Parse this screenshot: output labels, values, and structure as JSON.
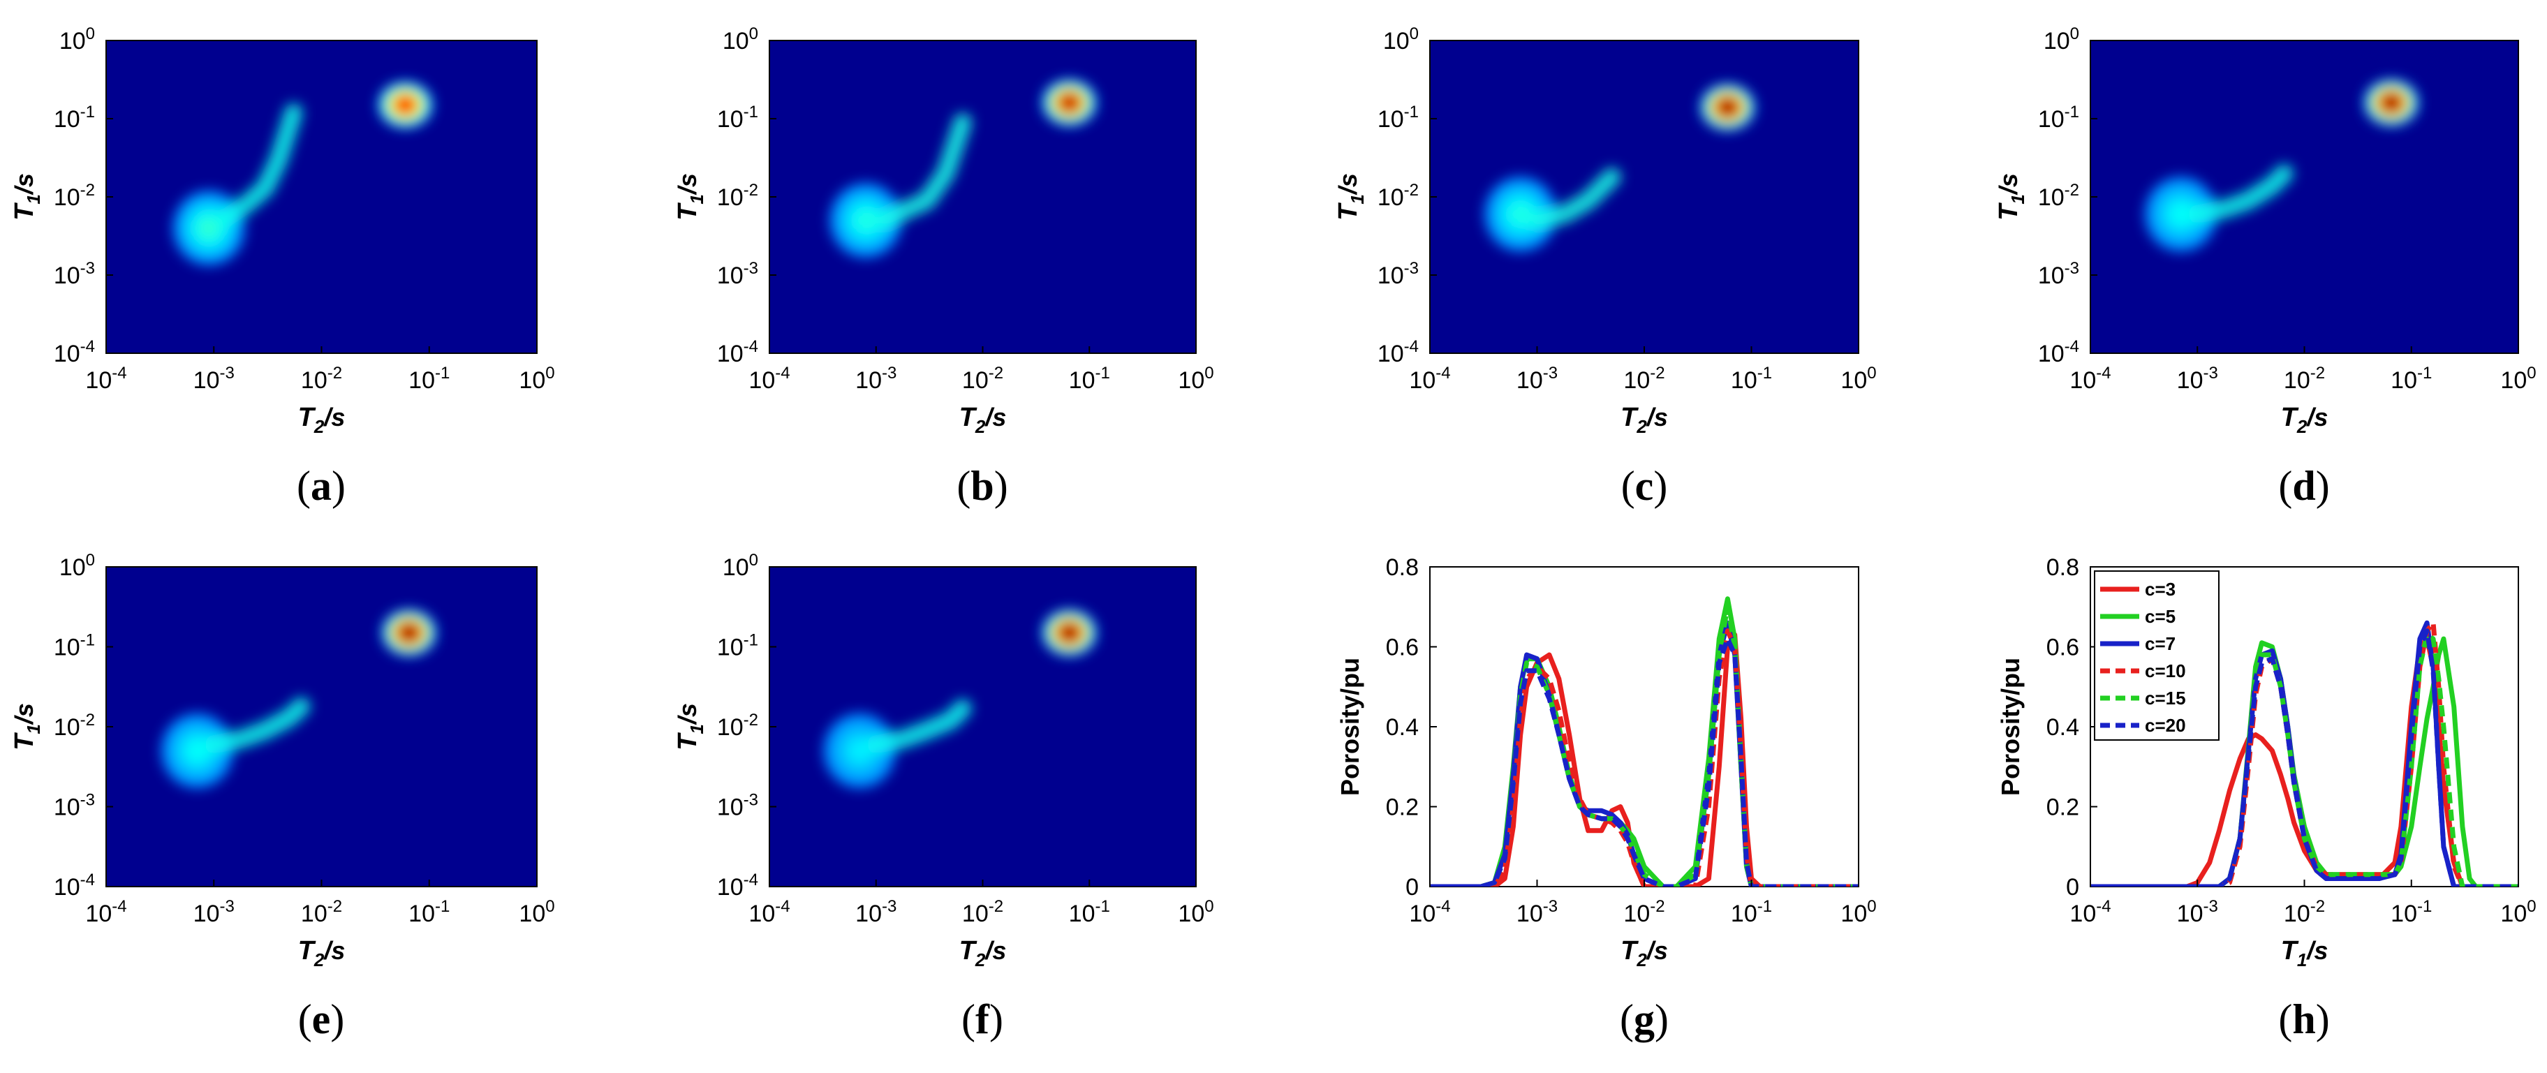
{
  "chart_data": [
    {
      "panel": "(a)",
      "type": "heatmap",
      "xlabel": "T2/s",
      "ylabel": "T1/s",
      "x_scale": "log",
      "y_scale": "log",
      "xlim": [
        0.0001,
        1
      ],
      "ylim": [
        0.0001,
        1
      ],
      "x_ticks": [
        "10-4",
        "10-3",
        "10-2",
        "10-1",
        "100"
      ],
      "y_ticks": [
        "10-4",
        "10-3",
        "10-2",
        "10-1",
        "100"
      ],
      "blobs": [
        {
          "kind": "spot",
          "t2": 0.06,
          "t1": 0.15,
          "intensity": 0.88
        },
        {
          "kind": "spot",
          "t2": 0.0009,
          "t1": 0.004,
          "intensity": 0.42
        },
        {
          "kind": "tail",
          "path_t2": [
            0.0012,
            0.002,
            0.003,
            0.004,
            0.0055
          ],
          "path_t1": [
            0.005,
            0.008,
            0.013,
            0.03,
            0.12
          ],
          "intensity": 0.22
        }
      ]
    },
    {
      "panel": "(b)",
      "type": "heatmap",
      "xlabel": "T2/s",
      "ylabel": "T1/s",
      "x_scale": "log",
      "y_scale": "log",
      "xlim": [
        0.0001,
        1
      ],
      "ylim": [
        0.0001,
        1
      ],
      "x_ticks": [
        "10-4",
        "10-3",
        "10-2",
        "10-1",
        "100"
      ],
      "y_ticks": [
        "10-4",
        "10-3",
        "10-2",
        "10-1",
        "100"
      ],
      "blobs": [
        {
          "kind": "spot",
          "t2": 0.065,
          "t1": 0.16,
          "intensity": 0.95
        },
        {
          "kind": "spot",
          "t2": 0.0008,
          "t1": 0.005,
          "intensity": 0.4
        },
        {
          "kind": "tail",
          "path_t2": [
            0.0012,
            0.002,
            0.003,
            0.0045,
            0.0065
          ],
          "path_t1": [
            0.005,
            0.007,
            0.009,
            0.02,
            0.09
          ],
          "intensity": 0.24
        }
      ]
    },
    {
      "panel": "(c)",
      "type": "heatmap",
      "xlabel": "T2/s",
      "ylabel": "T1/s",
      "x_scale": "log",
      "y_scale": "log",
      "xlim": [
        0.0001,
        1
      ],
      "ylim": [
        0.0001,
        1
      ],
      "x_ticks": [
        "10-4",
        "10-3",
        "10-2",
        "10-1",
        "100"
      ],
      "y_ticks": [
        "10-4",
        "10-3",
        "10-2",
        "10-1",
        "100"
      ],
      "blobs": [
        {
          "kind": "spot",
          "t2": 0.06,
          "t1": 0.14,
          "intensity": 1.0
        },
        {
          "kind": "spot",
          "t2": 0.0007,
          "t1": 0.006,
          "intensity": 0.4
        },
        {
          "kind": "tail",
          "path_t2": [
            0.001,
            0.0018,
            0.003,
            0.005
          ],
          "path_t1": [
            0.005,
            0.006,
            0.009,
            0.018
          ],
          "intensity": 0.25
        }
      ]
    },
    {
      "panel": "(d)",
      "type": "heatmap",
      "xlabel": "T2/s",
      "ylabel": "T1/s",
      "x_scale": "log",
      "y_scale": "log",
      "xlim": [
        0.0001,
        1
      ],
      "ylim": [
        0.0001,
        1
      ],
      "x_ticks": [
        "10-4",
        "10-3",
        "10-2",
        "10-1",
        "100"
      ],
      "y_ticks": [
        "10-4",
        "10-3",
        "10-2",
        "10-1",
        "100"
      ],
      "blobs": [
        {
          "kind": "spot",
          "t2": 0.065,
          "t1": 0.16,
          "intensity": 1.0
        },
        {
          "kind": "spot",
          "t2": 0.0007,
          "t1": 0.006,
          "intensity": 0.38
        },
        {
          "kind": "tail",
          "path_t2": [
            0.001,
            0.0018,
            0.003,
            0.005,
            0.0065
          ],
          "path_t1": [
            0.006,
            0.007,
            0.009,
            0.014,
            0.02
          ],
          "intensity": 0.22
        }
      ]
    },
    {
      "panel": "(e)",
      "type": "heatmap",
      "xlabel": "T2/s",
      "ylabel": "T1/s",
      "x_scale": "log",
      "y_scale": "log",
      "xlim": [
        0.0001,
        1
      ],
      "ylim": [
        0.0001,
        1
      ],
      "x_ticks": [
        "10-4",
        "10-3",
        "10-2",
        "10-1",
        "100"
      ],
      "y_ticks": [
        "10-4",
        "10-3",
        "10-2",
        "10-1",
        "100"
      ],
      "blobs": [
        {
          "kind": "spot",
          "t2": 0.065,
          "t1": 0.15,
          "intensity": 1.0
        },
        {
          "kind": "spot",
          "t2": 0.0007,
          "t1": 0.005,
          "intensity": 0.38
        },
        {
          "kind": "tail",
          "path_t2": [
            0.001,
            0.0018,
            0.003,
            0.005,
            0.0065
          ],
          "path_t1": [
            0.006,
            0.007,
            0.009,
            0.013,
            0.018
          ],
          "intensity": 0.22
        }
      ]
    },
    {
      "panel": "(f)",
      "type": "heatmap",
      "xlabel": "T2/s",
      "ylabel": "T1/s",
      "x_scale": "log",
      "y_scale": "log",
      "xlim": [
        0.0001,
        1
      ],
      "ylim": [
        0.0001,
        1
      ],
      "x_ticks": [
        "10-4",
        "10-3",
        "10-2",
        "10-1",
        "100"
      ],
      "y_ticks": [
        "10-4",
        "10-3",
        "10-2",
        "10-1",
        "100"
      ],
      "blobs": [
        {
          "kind": "spot",
          "t2": 0.065,
          "t1": 0.15,
          "intensity": 1.0
        },
        {
          "kind": "spot",
          "t2": 0.0007,
          "t1": 0.005,
          "intensity": 0.36
        },
        {
          "kind": "tail",
          "path_t2": [
            0.001,
            0.0018,
            0.003,
            0.005,
            0.0065
          ],
          "path_t1": [
            0.006,
            0.007,
            0.009,
            0.012,
            0.017
          ],
          "intensity": 0.2
        }
      ]
    },
    {
      "panel": "(g)",
      "type": "line",
      "xlabel": "T2/s",
      "ylabel": "Porosity/pu",
      "x_scale": "log",
      "xlim": [
        0.0001,
        1
      ],
      "ylim": [
        0,
        0.8
      ],
      "x_ticks": [
        "10-4",
        "10-3",
        "10-2",
        "10-1",
        "100"
      ],
      "y_ticks": [
        "0",
        "0.2",
        "0.4",
        "0.6",
        "0.8"
      ],
      "x": [
        0.0001,
        0.0003,
        0.0004,
        0.0005,
        0.0006,
        0.0007,
        0.0008,
        0.001,
        0.0013,
        0.0016,
        0.002,
        0.0025,
        0.003,
        0.004,
        0.005,
        0.006,
        0.007,
        0.008,
        0.01,
        0.015,
        0.02,
        0.03,
        0.04,
        0.05,
        0.06,
        0.07,
        0.08,
        0.09,
        0.1,
        0.12,
        0.15,
        0.2,
        1
      ],
      "series": [
        {
          "name": "c=3",
          "color": "#e8201e",
          "dash": false,
          "values": [
            0,
            0,
            0,
            0.02,
            0.15,
            0.38,
            0.5,
            0.56,
            0.58,
            0.52,
            0.38,
            0.22,
            0.14,
            0.14,
            0.19,
            0.2,
            0.16,
            0.06,
            0,
            0,
            0,
            0,
            0.02,
            0.3,
            0.6,
            0.63,
            0.42,
            0.15,
            0.02,
            0,
            0,
            0,
            0
          ]
        },
        {
          "name": "c=5",
          "color": "#22d022",
          "dash": false,
          "values": [
            0,
            0,
            0.01,
            0.1,
            0.3,
            0.5,
            0.57,
            0.57,
            0.5,
            0.4,
            0.28,
            0.2,
            0.18,
            0.17,
            0.17,
            0.16,
            0.14,
            0.12,
            0.05,
            0,
            0,
            0.05,
            0.32,
            0.62,
            0.72,
            0.62,
            0.32,
            0.06,
            0,
            0,
            0,
            0,
            0
          ]
        },
        {
          "name": "c=7",
          "color": "#1822c8",
          "dash": false,
          "values": [
            0,
            0,
            0.01,
            0.08,
            0.28,
            0.5,
            0.58,
            0.57,
            0.48,
            0.38,
            0.27,
            0.2,
            0.19,
            0.19,
            0.18,
            0.16,
            0.13,
            0.08,
            0.02,
            0,
            0,
            0.02,
            0.28,
            0.58,
            0.66,
            0.58,
            0.3,
            0.05,
            0,
            0,
            0,
            0,
            0
          ]
        },
        {
          "name": "c=10",
          "color": "#e8201e",
          "dash": true,
          "values": [
            0,
            0,
            0,
            0.04,
            0.2,
            0.42,
            0.52,
            0.55,
            0.52,
            0.44,
            0.31,
            0.22,
            0.18,
            0.17,
            0.16,
            0.14,
            0.11,
            0.06,
            0,
            0,
            0,
            0,
            0.2,
            0.52,
            0.64,
            0.6,
            0.34,
            0.08,
            0,
            0,
            0,
            0,
            0
          ]
        },
        {
          "name": "c=15",
          "color": "#22d022",
          "dash": true,
          "values": [
            0,
            0,
            0.01,
            0.07,
            0.26,
            0.48,
            0.56,
            0.55,
            0.48,
            0.38,
            0.27,
            0.2,
            0.18,
            0.17,
            0.17,
            0.15,
            0.13,
            0.09,
            0.03,
            0,
            0,
            0.03,
            0.28,
            0.58,
            0.7,
            0.6,
            0.3,
            0.05,
            0,
            0,
            0,
            0,
            0
          ]
        },
        {
          "name": "c=20",
          "color": "#1822c8",
          "dash": true,
          "values": [
            0,
            0,
            0.01,
            0.07,
            0.26,
            0.46,
            0.54,
            0.54,
            0.47,
            0.38,
            0.27,
            0.2,
            0.18,
            0.17,
            0.17,
            0.15,
            0.12,
            0.08,
            0.02,
            0,
            0,
            0.02,
            0.25,
            0.56,
            0.62,
            0.58,
            0.32,
            0.06,
            0,
            0,
            0,
            0,
            0
          ]
        }
      ]
    },
    {
      "panel": "(h)",
      "type": "line",
      "xlabel": "T1/s",
      "ylabel": "Porosity/pu",
      "x_scale": "log",
      "xlim": [
        0.0001,
        1
      ],
      "ylim": [
        0,
        0.8
      ],
      "x_ticks": [
        "10-4",
        "10-3",
        "10-2",
        "10-1",
        "100"
      ],
      "y_ticks": [
        "0",
        "0.2",
        "0.4",
        "0.6",
        "0.8"
      ],
      "legend": "top-left",
      "x": [
        0.0001,
        0.0008,
        0.001,
        0.0013,
        0.0016,
        0.002,
        0.0025,
        0.003,
        0.0035,
        0.004,
        0.005,
        0.006,
        0.007,
        0.008,
        0.01,
        0.013,
        0.016,
        0.02,
        0.03,
        0.05,
        0.07,
        0.08,
        0.1,
        0.12,
        0.14,
        0.16,
        0.18,
        0.2,
        0.25,
        0.3,
        0.35,
        0.4,
        1
      ],
      "series": [
        {
          "name": "c=3",
          "color": "#e8201e",
          "dash": false,
          "values": [
            0,
            0,
            0.01,
            0.06,
            0.14,
            0.24,
            0.32,
            0.37,
            0.38,
            0.37,
            0.34,
            0.28,
            0.22,
            0.16,
            0.09,
            0.04,
            0.02,
            0.02,
            0.02,
            0.02,
            0.06,
            0.15,
            0.45,
            0.6,
            0.62,
            0.55,
            0.4,
            0.25,
            0.06,
            0,
            0,
            0,
            0
          ]
        },
        {
          "name": "c=5",
          "color": "#22d022",
          "dash": false,
          "values": [
            0,
            0,
            0,
            0,
            0,
            0.02,
            0.12,
            0.35,
            0.55,
            0.61,
            0.6,
            0.52,
            0.4,
            0.28,
            0.15,
            0.06,
            0.03,
            0.03,
            0.03,
            0.03,
            0.03,
            0.05,
            0.15,
            0.3,
            0.42,
            0.5,
            0.58,
            0.62,
            0.45,
            0.15,
            0.02,
            0,
            0
          ]
        },
        {
          "name": "c=7",
          "color": "#1822c8",
          "dash": false,
          "values": [
            0,
            0,
            0,
            0,
            0,
            0.02,
            0.12,
            0.34,
            0.52,
            0.58,
            0.59,
            0.52,
            0.4,
            0.27,
            0.12,
            0.04,
            0.02,
            0.02,
            0.02,
            0.02,
            0.03,
            0.08,
            0.4,
            0.62,
            0.66,
            0.55,
            0.3,
            0.1,
            0,
            0,
            0,
            0,
            0
          ]
        },
        {
          "name": "c=10",
          "color": "#e8201e",
          "dash": true,
          "values": [
            0,
            0,
            0,
            0,
            0,
            0.01,
            0.1,
            0.3,
            0.48,
            0.55,
            0.57,
            0.5,
            0.38,
            0.26,
            0.12,
            0.05,
            0.03,
            0.03,
            0.03,
            0.03,
            0.03,
            0.06,
            0.3,
            0.55,
            0.64,
            0.66,
            0.5,
            0.3,
            0.05,
            0,
            0,
            0,
            0
          ]
        },
        {
          "name": "c=15",
          "color": "#22d022",
          "dash": true,
          "values": [
            0,
            0,
            0,
            0,
            0,
            0.02,
            0.12,
            0.33,
            0.52,
            0.58,
            0.58,
            0.5,
            0.38,
            0.26,
            0.12,
            0.05,
            0.03,
            0.03,
            0.03,
            0.03,
            0.03,
            0.06,
            0.3,
            0.55,
            0.63,
            0.62,
            0.52,
            0.4,
            0.1,
            0,
            0,
            0,
            0
          ]
        },
        {
          "name": "c=20",
          "color": "#1822c8",
          "dash": true,
          "values": [
            0,
            0,
            0,
            0,
            0,
            0.02,
            0.12,
            0.33,
            0.5,
            0.56,
            0.57,
            0.5,
            0.38,
            0.26,
            0.12,
            0.04,
            0.02,
            0.02,
            0.02,
            0.02,
            0.03,
            0.07,
            0.38,
            0.6,
            0.64,
            0.54,
            0.3,
            0.1,
            0,
            0,
            0,
            0,
            0
          ]
        }
      ]
    }
  ],
  "colors": {
    "background": "#00008f",
    "axis": "#000000"
  }
}
